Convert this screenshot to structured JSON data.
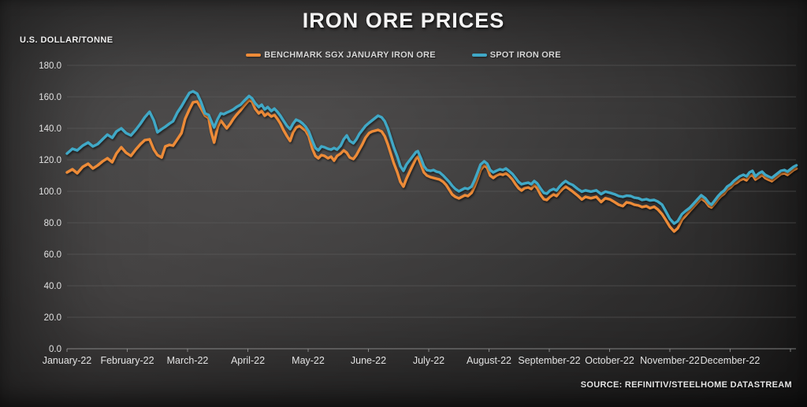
{
  "chart_data": {
    "type": "line",
    "title": "IRON ORE PRICES",
    "ylabel": "U.S. DOLLAR/TONNE",
    "source": "SOURCE: REFINITIV/STEELHOME DATASTREAM",
    "legend_position": "top-center",
    "grid": "horizontal",
    "colors": {
      "grid": "#5f5f5f",
      "axis": "#9a9a9a",
      "tick_text": "#e2e2e2"
    },
    "y_axis": {
      "min": 0,
      "max": 180,
      "step": 20,
      "tick_labels": [
        "0.0",
        "20.0",
        "40.0",
        "60.0",
        "80.0",
        "100.0",
        "120.0",
        "140.0",
        "160.0",
        "180.0"
      ]
    },
    "x_axis": {
      "unit": "months of 2022 (0 = January tick, 12 = end of December)",
      "categories": [
        "January-22",
        "February-22",
        "March-22",
        "April-22",
        "May-22",
        "June-22",
        "July-22",
        "August-22",
        "September-22",
        "October-22",
        "November-22",
        "December-22"
      ]
    },
    "x": [
      0,
      0.09,
      0.17,
      0.26,
      0.35,
      0.43,
      0.51,
      0.59,
      0.67,
      0.75,
      0.82,
      0.9,
      0.98,
      1.06,
      1.14,
      1.22,
      1.29,
      1.37,
      1.44,
      1.5,
      1.57,
      1.63,
      1.7,
      1.76,
      1.83,
      1.9,
      1.96,
      2.03,
      2.09,
      2.16,
      2.22,
      2.29,
      2.35,
      2.39,
      2.44,
      2.5,
      2.55,
      2.6,
      2.65,
      2.71,
      2.76,
      2.81,
      2.88,
      2.94,
      3.02,
      3.07,
      3.12,
      3.18,
      3.23,
      3.28,
      3.33,
      3.39,
      3.44,
      3.49,
      3.54,
      3.59,
      3.65,
      3.7,
      3.75,
      3.8,
      3.86,
      3.91,
      3.96,
      4.01,
      4.07,
      4.12,
      4.17,
      4.22,
      4.27,
      4.33,
      4.38,
      4.43,
      4.48,
      4.54,
      4.59,
      4.64,
      4.69,
      4.75,
      4.8,
      4.85,
      4.9,
      4.95,
      5.01,
      5.06,
      5.11,
      5.16,
      5.22,
      5.27,
      5.32,
      5.37,
      5.42,
      5.48,
      5.53,
      5.58,
      5.63,
      5.69,
      5.74,
      5.79,
      5.82,
      5.87,
      5.92,
      5.97,
      6.03,
      6.08,
      6.13,
      6.18,
      6.24,
      6.29,
      6.34,
      6.39,
      6.44,
      6.5,
      6.55,
      6.6,
      6.65,
      6.71,
      6.76,
      6.81,
      6.86,
      6.92,
      6.97,
      7.02,
      7.07,
      7.12,
      7.18,
      7.23,
      7.28,
      7.33,
      7.39,
      7.44,
      7.49,
      7.54,
      7.59,
      7.65,
      7.7,
      7.75,
      7.8,
      7.86,
      7.91,
      7.96,
      8.01,
      8.07,
      8.12,
      8.17,
      8.22,
      8.27,
      8.33,
      8.39,
      8.47,
      8.54,
      8.6,
      8.69,
      8.78,
      8.86,
      8.93,
      9.01,
      9.08,
      9.15,
      9.22,
      9.28,
      9.35,
      9.41,
      9.48,
      9.54,
      9.61,
      9.67,
      9.74,
      9.8,
      9.87,
      9.93,
      10.0,
      10.07,
      10.13,
      10.2,
      10.26,
      10.33,
      10.39,
      10.46,
      10.52,
      10.59,
      10.65,
      10.69,
      10.75,
      10.8,
      10.85,
      10.9,
      10.95,
      11.01,
      11.06,
      11.11,
      11.16,
      11.22,
      11.27,
      11.32,
      11.37,
      11.42,
      11.48,
      11.53,
      11.58,
      11.63,
      11.69,
      11.74,
      11.79,
      11.84,
      11.9,
      11.95,
      12.0,
      12.05,
      12.1
    ],
    "series": [
      {
        "name": "BENCHMARK SGX JANUARY IRON ORE",
        "color": "#ED8B38",
        "values": [
          112,
          114,
          111.5,
          115.5,
          117.5,
          114.5,
          116.5,
          119,
          121,
          118.5,
          124,
          128,
          124.5,
          122.5,
          126.5,
          130,
          132.5,
          133,
          126.5,
          123,
          121.5,
          128.5,
          129.5,
          129,
          133,
          137,
          146,
          152,
          156.5,
          157,
          153,
          148,
          146.5,
          138,
          131,
          141,
          145,
          142.5,
          140,
          143,
          146,
          148.5,
          151.5,
          154.5,
          158,
          157,
          152.5,
          149.5,
          151,
          148,
          149.5,
          147.5,
          148.5,
          146,
          143,
          139,
          135,
          132,
          137.5,
          140.5,
          141.5,
          140,
          138.5,
          135,
          127,
          122.5,
          121,
          123,
          122.5,
          121,
          122,
          119.5,
          122.5,
          124,
          126,
          124.5,
          121.5,
          120.5,
          123,
          126.5,
          130,
          134,
          137,
          138,
          138.5,
          139,
          138,
          135,
          130,
          124,
          118,
          112,
          106,
          103,
          108,
          113,
          117,
          121,
          122,
          117,
          112,
          110,
          109,
          108.5,
          108,
          107.5,
          106,
          104,
          101,
          98,
          96.5,
          95.5,
          96.5,
          97.5,
          97,
          99,
          103,
          108,
          113.5,
          116.5,
          115,
          110,
          108.5,
          110,
          111,
          110.5,
          111.5,
          110,
          107.5,
          104.5,
          102,
          100.5,
          102,
          102.5,
          101.5,
          104,
          102,
          97.5,
          95,
          94.5,
          96.5,
          98,
          97,
          99.5,
          101.5,
          103,
          101.5,
          99.8,
          97.3,
          94.8,
          96.5,
          95.6,
          96.5,
          93.2,
          95.6,
          94.8,
          93.2,
          91.5,
          90.6,
          93,
          92.5,
          91.5,
          91,
          90,
          90.6,
          89.3,
          90.2,
          88.5,
          85.5,
          82,
          77.5,
          74.5,
          76.5,
          82,
          84.5,
          87.5,
          90,
          93,
          95.5,
          93.5,
          90.5,
          89.8,
          92.5,
          95,
          97,
          98.5,
          101,
          102.5,
          104.5,
          105.5,
          107,
          108,
          107,
          109.5,
          110.5,
          107.5,
          109,
          110.5,
          108.5,
          107.5,
          106.5,
          108,
          109.5,
          111,
          111.5,
          110.5,
          112,
          113.5,
          114.5
        ]
      },
      {
        "name": "SPOT IRON ORE",
        "color": "#3FA8C6",
        "values": [
          124,
          127,
          126,
          129,
          131,
          128.5,
          130,
          133,
          136,
          134,
          138,
          140,
          137,
          135.5,
          139,
          143,
          147,
          150.5,
          145,
          137.5,
          139.5,
          141,
          143,
          144.5,
          150,
          154,
          158,
          162.5,
          163.5,
          162,
          157,
          149.5,
          148.5,
          145,
          140.5,
          146,
          149.5,
          149,
          150,
          151,
          152,
          153.5,
          155,
          157.5,
          160.5,
          159,
          156,
          153.5,
          155,
          152,
          153.5,
          151,
          152.5,
          150.5,
          148,
          145,
          141.5,
          139.5,
          143,
          145.5,
          144.5,
          143,
          141,
          138,
          132,
          127.5,
          126,
          128.5,
          128,
          127,
          126.5,
          127.5,
          126.5,
          129,
          133,
          135.5,
          132,
          130.5,
          133,
          136.5,
          139,
          141.5,
          143.5,
          145,
          146.5,
          148,
          147,
          144.5,
          140,
          134,
          128,
          122,
          116,
          113,
          117,
          120,
          122.5,
          125,
          125.5,
          121,
          116,
          113.5,
          113,
          113.5,
          112.5,
          112,
          110,
          108,
          106,
          103.5,
          101.5,
          100,
          101,
          102,
          101.5,
          103,
          107,
          112,
          117,
          119,
          117.5,
          113.5,
          112,
          113,
          114,
          113.5,
          114.5,
          113,
          111,
          108.5,
          106,
          104.5,
          105,
          105.5,
          104.5,
          106.5,
          105,
          101.5,
          99,
          98.5,
          100.5,
          101.5,
          100.5,
          103,
          105,
          106.5,
          105,
          104,
          101.5,
          99.8,
          100.6,
          99.8,
          100.6,
          98.2,
          99.8,
          99,
          98.2,
          97,
          96.5,
          97.2,
          97,
          96,
          95.6,
          94.5,
          95,
          94.2,
          94.5,
          93.5,
          91.5,
          87.5,
          82.5,
          79.5,
          81,
          85.5,
          87.5,
          89.5,
          92,
          95,
          97.5,
          95.5,
          92.5,
          91.5,
          94.5,
          97,
          99,
          100.5,
          103,
          104.5,
          106.5,
          108,
          109.5,
          110.5,
          109.5,
          112,
          113,
          109.5,
          111.5,
          112.5,
          110.5,
          109.5,
          108.5,
          110,
          111.5,
          113,
          113.5,
          112.5,
          114,
          115.5,
          116.5
        ]
      }
    ]
  }
}
